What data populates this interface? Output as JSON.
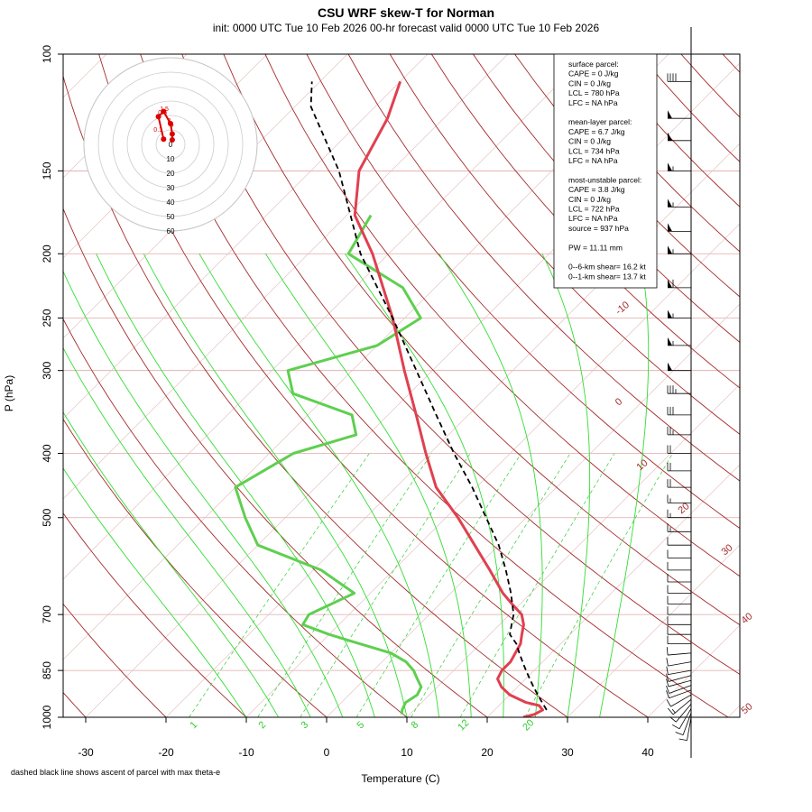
{
  "page": {
    "title": "CSU WRF skew-T for Norman",
    "subtitle": "init: 0000 UTC Tue 10 Feb 2026    00-hr forecast valid 0000 UTC Tue 10 Feb 2026",
    "footnote": "dashed black line shows ascent of parcel with max theta-e"
  },
  "chart_data": {
    "type": "line",
    "title": "CSU WRF skew-T for Norman",
    "xlabel": "Temperature (C)",
    "ylabel": "P (hPa)",
    "xticks": [
      -30,
      -20,
      -10,
      0,
      10,
      20,
      30,
      40
    ],
    "yticks": [
      100,
      150,
      200,
      250,
      300,
      400,
      500,
      700,
      850,
      1000
    ],
    "xlim": [
      -33,
      44
    ],
    "ylim": [
      1000,
      100
    ],
    "yscale": "log",
    "skew": "45-degree",
    "temperature_profile": {
      "color": "#e04050",
      "p": [
        1000,
        990,
        975,
        960,
        950,
        925,
        900,
        875,
        850,
        825,
        800,
        775,
        750,
        725,
        700,
        675,
        650,
        600,
        550,
        500,
        450,
        400,
        350,
        300,
        250,
        200,
        175,
        150,
        125,
        110
      ],
      "t": [
        24.5,
        25.5,
        26,
        25,
        23,
        20,
        18,
        16.5,
        16,
        16,
        15.5,
        15,
        14,
        13,
        11.5,
        9,
        6.5,
        2,
        -3,
        -8.5,
        -15,
        -20.5,
        -26.5,
        -33.5,
        -41.5,
        -52,
        -59,
        -64,
        -67,
        -70
      ]
    },
    "dewpoint_profile": {
      "color": "#5fcf50",
      "p": [
        990,
        975,
        950,
        925,
        900,
        875,
        850,
        825,
        800,
        775,
        750,
        725,
        700,
        650,
        600,
        550,
        500,
        450,
        400,
        375,
        350,
        325,
        300,
        275,
        250,
        225,
        200,
        175
      ],
      "td": [
        9,
        8.5,
        8,
        8.5,
        8,
        6.5,
        5,
        3,
        0,
        -5,
        -10,
        -14.5,
        -15,
        -12,
        -19,
        -30,
        -35,
        -40,
        -37,
        -31.5,
        -34.5,
        -44.5,
        -48,
        -40,
        -38,
        -44,
        -55,
        -57
      ]
    },
    "parcel_ascent": {
      "style": "dashed black",
      "p": [
        975,
        950,
        925,
        900,
        875,
        850,
        825,
        800,
        775,
        750,
        725,
        700,
        650,
        600,
        550,
        500,
        450,
        400,
        350,
        300,
        250,
        200,
        150,
        120,
        110
      ],
      "t": [
        26.5,
        25,
        23.5,
        22,
        20.5,
        19,
        17.5,
        16,
        14.5,
        12.5,
        11.5,
        10.5,
        7.5,
        4,
        0,
        -5,
        -10.5,
        -17,
        -24,
        -32,
        -41.5,
        -53.5,
        -66.5,
        -78,
        -81
      ]
    },
    "isotherm_labels": [
      "-10",
      "0",
      "10",
      "20",
      "30",
      "40",
      "50"
    ],
    "mixing_ratio_labels": [
      "1",
      "2",
      "3",
      "5",
      "8",
      "12",
      "20"
    ],
    "hodograph": {
      "rings": [
        "0",
        "10",
        "20",
        "30",
        "40",
        "50",
        "60"
      ],
      "point_labels": [
        "0.5",
        "1.5",
        "3",
        "6",
        "0.1"
      ],
      "path_uv": [
        [
          -2,
          1.5
        ],
        [
          -3.5,
          8
        ],
        [
          -2,
          9.5
        ],
        [
          0,
          6
        ],
        [
          0.5,
          3
        ],
        [
          0.5,
          1.3
        ]
      ],
      "color": "#dd0000"
    },
    "winds": {
      "p": [
        1000,
        985,
        970,
        955,
        940,
        925,
        910,
        895,
        880,
        865,
        850,
        825,
        800,
        775,
        750,
        725,
        700,
        675,
        650,
        625,
        600,
        575,
        550,
        525,
        500,
        475,
        450,
        425,
        400,
        375,
        350,
        325,
        300,
        275,
        250,
        225,
        200,
        185,
        170,
        150,
        135,
        125,
        110
      ],
      "speed_kt": [
        10,
        10,
        12,
        14,
        15,
        14,
        13,
        12,
        12,
        11,
        10,
        10,
        10,
        10,
        10,
        10,
        10,
        10,
        10,
        10,
        10,
        10,
        10,
        15,
        15,
        15,
        20,
        20,
        20,
        25,
        30,
        35,
        50,
        55,
        55,
        60,
        55,
        50,
        55,
        55,
        50,
        50,
        40
      ],
      "dir_deg": [
        190,
        200,
        210,
        220,
        230,
        240,
        250,
        250,
        255,
        255,
        260,
        260,
        265,
        270,
        270,
        270,
        270,
        270,
        270,
        270,
        270,
        270,
        270,
        270,
        270,
        270,
        270,
        270,
        270,
        270,
        270,
        270,
        270,
        270,
        270,
        270,
        270,
        270,
        270,
        270,
        270,
        270,
        270
      ]
    },
    "legend": {
      "placement": "top-right",
      "lines": [
        "surface parcel:",
        "CAPE = 0 J/kg",
        "CIN = 0 J/kg",
        "LCL = 780 hPa",
        "LFC = NA hPa",
        "",
        "mean-layer parcel:",
        "CAPE = 6.7 J/kg",
        "CIN = 0 J/kg",
        "LCL = 734 hPa",
        "LFC = NA hPa",
        "",
        "most-unstable parcel:",
        "CAPE = 3.8 J/kg",
        "CIN = 0 J/kg",
        "LCL = 722 hPa",
        "LFC = NA hPa",
        "source = 937 hPa",
        "",
        "PW =  11.11 mm",
        "",
        "0--6-km shear= 16.2 kt",
        "0--1-km shear= 13.7 kt"
      ]
    }
  }
}
